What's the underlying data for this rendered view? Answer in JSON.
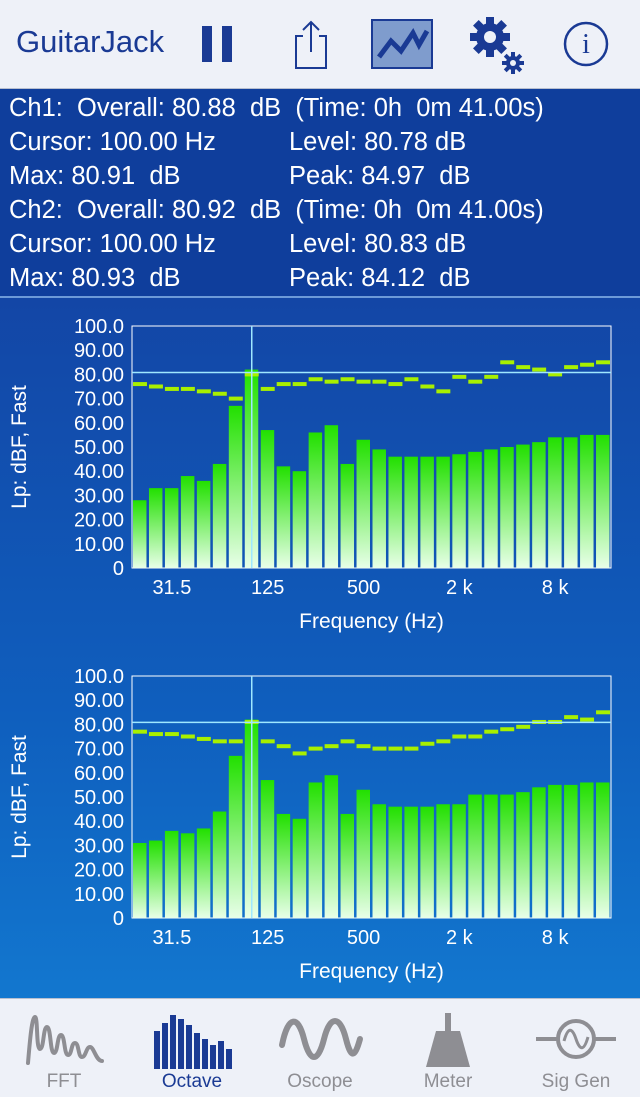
{
  "app": {
    "title": "GuitarJack"
  },
  "toolbar": {
    "pause_icon": "pause-icon",
    "share_icon": "share-icon",
    "graph_icon": "graph-icon",
    "settings_icon": "gear-icon",
    "info_icon": "info-icon"
  },
  "readouts": {
    "ch1": {
      "overall": "Ch1:  Overall: 80.88  dB  (Time: 0h  0m 41.00s)",
      "cursor": "Cursor: 100.00 Hz",
      "level": "Level: 80.78 dB",
      "max": "Max: 80.91  dB",
      "peak": "Peak: 84.97  dB"
    },
    "ch2": {
      "overall": "Ch2:  Overall: 80.92  dB  (Time: 0h  0m 41.00s)",
      "cursor": "Cursor: 100.00 Hz",
      "level": "Level: 80.83 dB",
      "max": "Max: 80.93  dB",
      "peak": "Peak: 84.12  dB"
    }
  },
  "chart_data": [
    {
      "type": "bar",
      "ylabel": "Lp: dBF, Fast",
      "xlabel": "Frequency (Hz)",
      "ylim": [
        0,
        100
      ],
      "yticks": [
        "100.0",
        "90.00",
        "80.00",
        "70.00",
        "60.00",
        "50.00",
        "40.00",
        "30.00",
        "20.00",
        "10.00",
        "0"
      ],
      "xtick_labels": [
        "31.5",
        "125",
        "500",
        "2 k",
        "8 k"
      ],
      "cursor_hz": 100,
      "cursor_level": 80.78,
      "series": [
        {
          "name": "Level",
          "values": [
            28,
            33,
            33,
            38,
            36,
            43,
            67,
            82,
            57,
            42,
            40,
            56,
            59,
            43,
            53,
            49,
            46,
            46,
            46,
            46,
            47,
            48,
            49,
            50,
            51,
            52,
            54,
            54,
            55,
            55
          ]
        },
        {
          "name": "Max",
          "values": [
            76,
            75,
            74,
            74,
            73,
            72,
            70,
            80,
            74,
            76,
            76,
            78,
            77,
            78,
            77,
            77,
            76,
            78,
            75,
            73,
            79,
            77,
            79,
            85,
            83,
            82,
            80,
            83,
            84,
            85
          ]
        }
      ]
    },
    {
      "type": "bar",
      "ylabel": "Lp: dBF, Fast",
      "xlabel": "Frequency (Hz)",
      "ylim": [
        0,
        100
      ],
      "yticks": [
        "100.0",
        "90.00",
        "80.00",
        "70.00",
        "60.00",
        "50.00",
        "40.00",
        "30.00",
        "20.00",
        "10.00",
        "0"
      ],
      "xtick_labels": [
        "31.5",
        "125",
        "500",
        "2 k",
        "8 k"
      ],
      "cursor_hz": 100,
      "cursor_level": 80.83,
      "series": [
        {
          "name": "Level",
          "values": [
            31,
            32,
            36,
            35,
            37,
            44,
            67,
            82,
            57,
            43,
            41,
            56,
            59,
            43,
            53,
            47,
            46,
            46,
            46,
            47,
            47,
            51,
            51,
            51,
            52,
            54,
            55,
            55,
            56,
            56
          ]
        },
        {
          "name": "Max",
          "values": [
            77,
            76,
            76,
            75,
            74,
            73,
            73,
            81,
            73,
            71,
            68,
            70,
            71,
            73,
            71,
            70,
            70,
            70,
            72,
            73,
            75,
            75,
            77,
            78,
            79,
            81,
            81,
            83,
            82,
            85
          ]
        }
      ]
    }
  ],
  "tabs": [
    {
      "label": "FFT",
      "icon": "fft-icon",
      "active": false
    },
    {
      "label": "Octave",
      "icon": "octave-icon",
      "active": true
    },
    {
      "label": "Oscope",
      "icon": "oscope-icon",
      "active": false
    },
    {
      "label": "Meter",
      "icon": "meter-icon",
      "active": false
    },
    {
      "label": "Sig Gen",
      "icon": "sig-gen-icon",
      "active": false
    }
  ],
  "colors": {
    "bar_top": "#22e000",
    "bar_bottom": "#e8ffe8",
    "max_marker": "#a8f000",
    "cursor_line": "#9fe8ff",
    "accent": "#1a3a94"
  }
}
